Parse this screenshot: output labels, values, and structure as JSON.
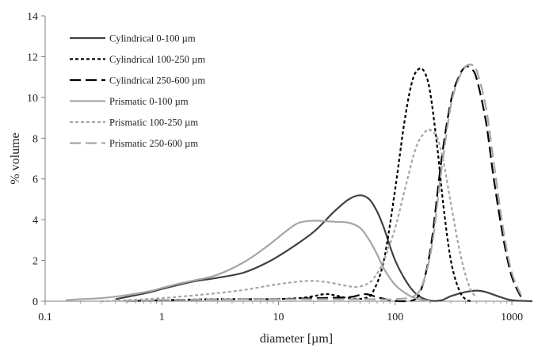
{
  "chart_data": {
    "type": "line",
    "xscale": "log",
    "xlabel": "diameter [µm]",
    "ylabel": "% volume",
    "xlim": [
      0.1,
      1500
    ],
    "ylim": [
      0,
      14
    ],
    "x_ticks": [
      0.1,
      1,
      10,
      100,
      1000
    ],
    "x_tick_labels": [
      "0.1",
      "1",
      "10",
      "100",
      "1000"
    ],
    "y_ticks": [
      0,
      2,
      4,
      6,
      8,
      10,
      12,
      14
    ],
    "y_tick_labels": [
      "0",
      "2",
      "4",
      "6",
      "8",
      "10",
      "12",
      "14"
    ],
    "grid": false,
    "legend_position": "top-left",
    "series": [
      {
        "name": "Cylindrical 0-100 µm",
        "color": "#404040",
        "dash": "solid",
        "x": [
          0.4,
          0.6,
          0.8,
          1,
          1.5,
          2,
          3,
          5,
          8,
          12,
          20,
          30,
          40,
          50,
          60,
          70,
          80,
          100,
          130,
          160,
          200,
          250,
          300,
          400,
          500,
          600,
          800,
          1000,
          1500
        ],
        "y": [
          0.1,
          0.3,
          0.45,
          0.6,
          0.85,
          1.0,
          1.15,
          1.4,
          1.9,
          2.5,
          3.4,
          4.4,
          5.0,
          5.2,
          5.0,
          4.4,
          3.6,
          2.0,
          0.8,
          0.25,
          0.03,
          0.05,
          0.25,
          0.45,
          0.52,
          0.45,
          0.2,
          0.05,
          0.0
        ]
      },
      {
        "name": "Cylindrical 100-250 µm",
        "color": "#000000",
        "dash": "short",
        "x": [
          0.5,
          1,
          3,
          8,
          15,
          20,
          25,
          30,
          40,
          55,
          65,
          80,
          100,
          120,
          140,
          160,
          180,
          200,
          230,
          260,
          300,
          350,
          400,
          450
        ],
        "y": [
          0.0,
          0.05,
          0.1,
          0.1,
          0.15,
          0.25,
          0.35,
          0.3,
          0.15,
          0.15,
          0.5,
          2.0,
          5.5,
          8.8,
          10.8,
          11.4,
          11.2,
          10.2,
          7.5,
          4.6,
          2.0,
          0.6,
          0.1,
          0.0
        ]
      },
      {
        "name": "Cylindrical 250-600 µm",
        "color": "#000000",
        "dash": "long",
        "x": [
          0.5,
          1,
          5,
          10,
          20,
          40,
          55,
          70,
          90,
          110,
          130,
          160,
          200,
          250,
          300,
          350,
          400,
          450,
          500,
          600,
          700,
          850,
          1000,
          1200
        ],
        "y": [
          0.0,
          0.05,
          0.1,
          0.1,
          0.15,
          0.2,
          0.35,
          0.2,
          0.05,
          0.0,
          0.0,
          0.3,
          2.5,
          7.0,
          9.8,
          11.0,
          11.5,
          11.4,
          10.9,
          8.8,
          6.0,
          3.0,
          1.2,
          0.2
        ]
      },
      {
        "name": "Prismatic 0-100 µm",
        "color": "#a6a6a6",
        "dash": "solid",
        "x": [
          0.15,
          0.2,
          0.3,
          0.5,
          0.8,
          1,
          1.5,
          2,
          3,
          5,
          8,
          12,
          15,
          20,
          30,
          40,
          50,
          60,
          70,
          80,
          100,
          130,
          160,
          200
        ],
        "y": [
          0.05,
          0.1,
          0.15,
          0.3,
          0.5,
          0.65,
          0.9,
          1.05,
          1.3,
          1.9,
          2.7,
          3.5,
          3.85,
          3.95,
          3.9,
          3.85,
          3.6,
          3.0,
          2.3,
          1.6,
          0.8,
          0.3,
          0.1,
          0.0
        ]
      },
      {
        "name": "Prismatic 100-250 µm",
        "color": "#a6a6a6",
        "dash": "short",
        "x": [
          0.3,
          0.5,
          1,
          2,
          3,
          5,
          8,
          12,
          18,
          25,
          35,
          45,
          55,
          65,
          80,
          100,
          120,
          150,
          180,
          200,
          230,
          260,
          300,
          350,
          400,
          450,
          500
        ],
        "y": [
          0.0,
          0.05,
          0.15,
          0.3,
          0.4,
          0.55,
          0.75,
          0.9,
          1.0,
          0.95,
          0.8,
          0.7,
          0.8,
          1.1,
          2.0,
          3.6,
          5.4,
          7.5,
          8.3,
          8.4,
          8.0,
          6.8,
          4.8,
          2.7,
          1.3,
          0.5,
          0.2
        ]
      },
      {
        "name": "Prismatic 250-600 µm",
        "color": "#a6a6a6",
        "dash": "long",
        "x": [
          0.5,
          1,
          5,
          10,
          30,
          60,
          100,
          150,
          180,
          210,
          250,
          300,
          350,
          400,
          450,
          500,
          600,
          700,
          850,
          1000,
          1200
        ],
        "y": [
          0.0,
          0.05,
          0.1,
          0.1,
          0.1,
          0.1,
          0.1,
          0.3,
          1.2,
          3.0,
          6.5,
          9.6,
          10.9,
          11.5,
          11.6,
          11.3,
          9.5,
          6.8,
          3.4,
          1.4,
          0.3
        ]
      }
    ]
  }
}
